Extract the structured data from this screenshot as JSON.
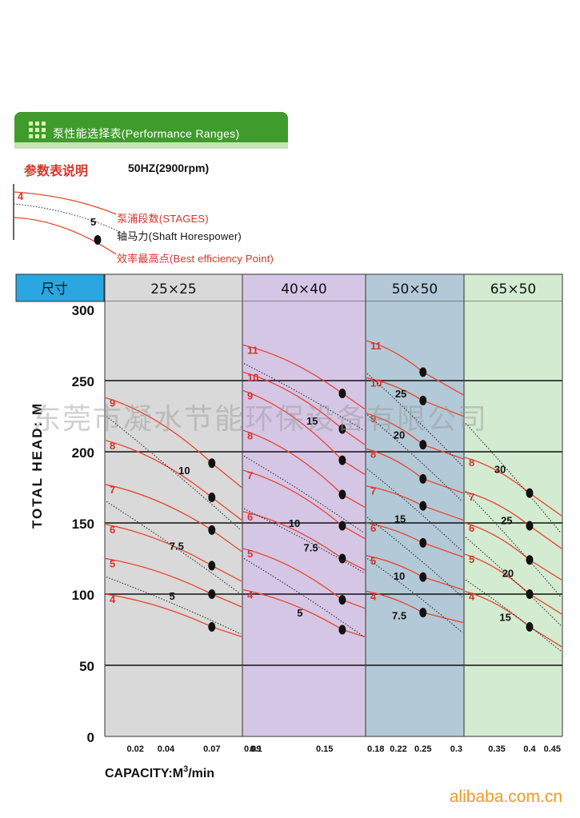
{
  "header": {
    "section_title": "泵性能选择表(Performance Ranges)",
    "legend_title": "参数表说明",
    "frequency": "50HZ(2900rpm)",
    "legend_stage_example": "4",
    "legend_hp_example": "5",
    "legend_stages": "泵浦段数(STAGES)",
    "legend_hp": "轴马力(Shaft Horespower)",
    "legend_bep": "效率最高点(Best efficiency Point)"
  },
  "watermark": "东莞市凝水节能环保设备有限公司",
  "footer": "alibaba.com.cn",
  "colors": {
    "tab_green": "#3f9b2c",
    "curve_red": "#e8452c",
    "stage_label_red": "#d8332a",
    "header_blue": "#2aa6e0",
    "panel_gray": "#d9d9d9",
    "panel_purple": "#d5c6e6",
    "panel_blue": "#b3c9d7",
    "panel_green": "#d3ebd0",
    "footer_orange": "#f39a1d"
  },
  "chart_data": {
    "type": "line",
    "size_header": "尺寸",
    "ylabel": "TOTAL HEAD: M",
    "xlabel_prefix": "CAPACITY:M",
    "xlabel_sup": "3",
    "xlabel_suffix": "/min",
    "ylim": [
      0,
      300
    ],
    "y_ticks": [
      "300",
      "250",
      "200",
      "150",
      "100",
      "50",
      "0"
    ],
    "grid": true,
    "panels": [
      {
        "size": "25×25",
        "x_ticks": [
          "0.02",
          "0.04",
          "0.07"
        ],
        "x_tick_values": [
          0.02,
          0.04,
          0.07
        ],
        "xlim": [
          0.0,
          0.09
        ],
        "bep_flow": 0.07,
        "curves": [
          {
            "stage": "4",
            "start_head": 100,
            "bep_head": 77,
            "end_head": 70
          },
          {
            "stage": "5",
            "start_head": 125,
            "bep_head": 100,
            "end_head": 91
          },
          {
            "stage": "6",
            "start_head": 149,
            "bep_head": 120,
            "end_head": 109
          },
          {
            "stage": "7",
            "start_head": 177,
            "bep_head": 145,
            "end_head": 130
          },
          {
            "stage": "8",
            "start_head": 208,
            "bep_head": 168,
            "end_head": 152
          },
          {
            "stage": "9",
            "start_head": 238,
            "bep_head": 192,
            "end_head": 175
          }
        ],
        "hp_lines": [
          {
            "hp": "5",
            "start_head": 112,
            "end_head": 72,
            "label_flow": 0.044,
            "label_head": 99
          },
          {
            "hp": "7.5",
            "start_head": 165,
            "end_head": 100,
            "label_flow": 0.047,
            "label_head": 134
          },
          {
            "hp": "10",
            "start_head": 225,
            "end_head": 145,
            "label_flow": 0.052,
            "label_head": 187
          }
        ]
      },
      {
        "size": "40×40",
        "x_ticks": [
          "0.09",
          "0.1",
          "0.15"
        ],
        "x_tick_values": [
          0.09,
          0.1,
          0.15
        ],
        "xlim": [
          0.09,
          0.18
        ],
        "bep_flow": 0.163,
        "curves": [
          {
            "stage": "4",
            "start_head": 103,
            "bep_head": 75,
            "end_head": 70
          },
          {
            "stage": "5",
            "start_head": 132,
            "bep_head": 96,
            "end_head": 90
          },
          {
            "stage": "6",
            "start_head": 158,
            "bep_head": 125,
            "end_head": 117
          },
          {
            "stage": "7",
            "start_head": 187,
            "bep_head": 148,
            "end_head": 139
          },
          {
            "stage": "8",
            "start_head": 215,
            "bep_head": 170,
            "end_head": 161
          },
          {
            "stage": "9",
            "start_head": 243,
            "bep_head": 194,
            "end_head": 184
          },
          {
            "stage": "10",
            "start_head": 256,
            "bep_head": 216,
            "end_head": 205
          },
          {
            "stage": "11",
            "start_head": 275,
            "bep_head": 241,
            "end_head": 230
          }
        ],
        "hp_lines": [
          {
            "hp": "5",
            "start_head": 125,
            "end_head": 70,
            "label_flow": 0.132,
            "label_head": 87
          },
          {
            "hp": "7.5",
            "start_head": 160,
            "end_head": 115,
            "label_flow": 0.14,
            "label_head": 133
          },
          {
            "hp": "10",
            "start_head": 197,
            "end_head": 143,
            "label_flow": 0.128,
            "label_head": 150
          },
          {
            "hp": "15",
            "start_head": 262,
            "end_head": 215,
            "label_flow": 0.141,
            "label_head": 222
          }
        ]
      },
      {
        "size": "50×50",
        "x_ticks": [
          "0.18",
          "0.22",
          "0.25",
          "0.3"
        ],
        "x_tick_values": [
          0.18,
          0.22,
          0.25,
          0.3
        ],
        "xlim": [
          0.18,
          0.3
        ],
        "bep_flow": 0.25,
        "curves": [
          {
            "stage": "4",
            "start_head": 102,
            "bep_head": 87,
            "end_head": 80
          },
          {
            "stage": "5",
            "start_head": 127,
            "bep_head": 112,
            "end_head": 103
          },
          {
            "stage": "6",
            "start_head": 150,
            "bep_head": 136,
            "end_head": 126
          },
          {
            "stage": "7",
            "start_head": 176,
            "bep_head": 162,
            "end_head": 152
          },
          {
            "stage": "8",
            "start_head": 202,
            "bep_head": 181,
            "end_head": 171
          },
          {
            "stage": "9",
            "start_head": 227,
            "bep_head": 205,
            "end_head": 195
          },
          {
            "stage": "10",
            "start_head": 252,
            "bep_head": 236,
            "end_head": 225
          },
          {
            "stage": "11",
            "start_head": 278,
            "bep_head": 256,
            "end_head": 240
          }
        ],
        "hp_lines": [
          {
            "hp": "7.5",
            "start_head": 125,
            "end_head": 73,
            "label_flow": 0.221,
            "label_head": 85
          },
          {
            "hp": "10",
            "start_head": 154,
            "end_head": 98,
            "label_flow": 0.221,
            "label_head": 113
          },
          {
            "hp": "15",
            "start_head": 188,
            "end_head": 130,
            "label_flow": 0.222,
            "label_head": 153
          },
          {
            "hp": "20",
            "start_head": 226,
            "end_head": 165,
            "label_flow": 0.221,
            "label_head": 212
          },
          {
            "hp": "25",
            "start_head": 255,
            "end_head": 190,
            "label_flow": 0.223,
            "label_head": 241
          }
        ]
      },
      {
        "size": "65×50",
        "x_ticks": [
          "0.35",
          "0.4",
          "0.45"
        ],
        "x_tick_values": [
          0.35,
          0.4,
          0.45
        ],
        "xlim": [
          0.3,
          0.45
        ],
        "bep_flow": 0.4,
        "curves": [
          {
            "stage": "4",
            "start_head": 102,
            "bep_head": 77,
            "end_head": 63
          },
          {
            "stage": "5",
            "start_head": 128,
            "bep_head": 100,
            "end_head": 86
          },
          {
            "stage": "6",
            "start_head": 150,
            "bep_head": 124,
            "end_head": 110
          },
          {
            "stage": "7",
            "start_head": 172,
            "bep_head": 148,
            "end_head": 132
          },
          {
            "stage": "8",
            "start_head": 196,
            "bep_head": 171,
            "end_head": 155
          }
        ],
        "hp_lines": [
          {
            "hp": "15",
            "start_head": 110,
            "end_head": 60,
            "label_flow": 0.363,
            "label_head": 84
          },
          {
            "hp": "20",
            "start_head": 140,
            "end_head": 78,
            "label_flow": 0.367,
            "label_head": 115
          },
          {
            "hp": "25",
            "start_head": 172,
            "end_head": 98,
            "label_flow": 0.365,
            "label_head": 152
          },
          {
            "hp": "30",
            "start_head": 220,
            "end_head": 143,
            "label_flow": 0.355,
            "label_head": 188
          }
        ]
      }
    ]
  }
}
